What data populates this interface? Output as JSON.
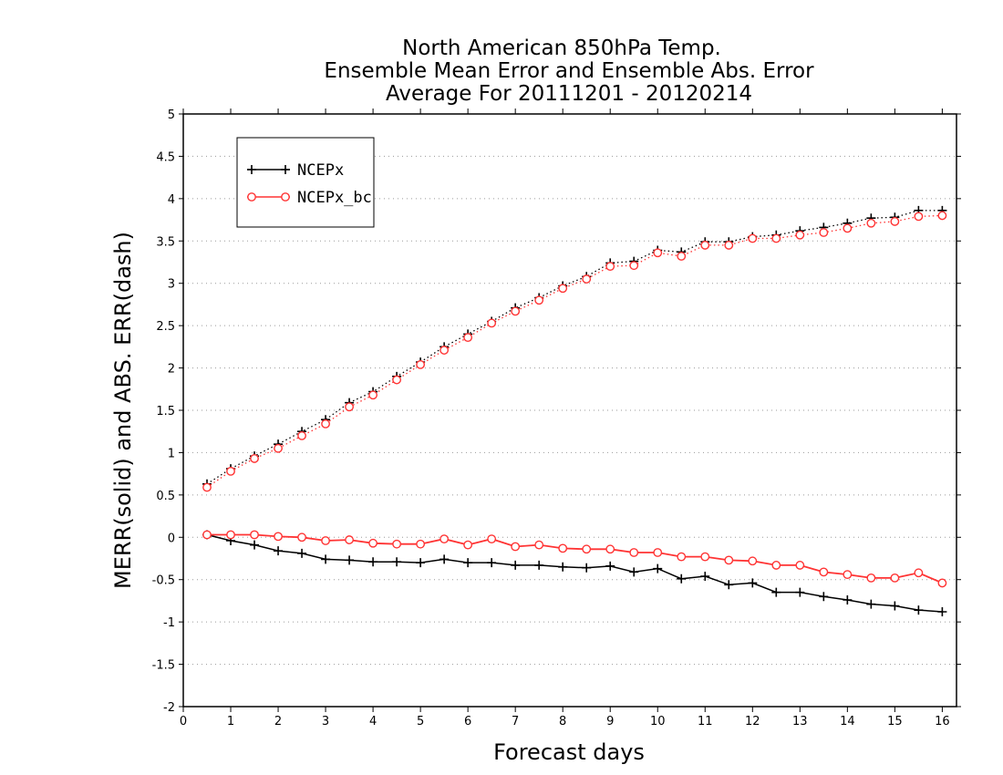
{
  "chart_data": {
    "type": "line",
    "title": [
      "North American 850hPa Temp.",
      "Ensemble Mean Error and Ensemble Abs. Error",
      "Average For 20111201 - 20120214"
    ],
    "xlabel": "Forecast days",
    "ylabel": "MERR(solid) and ABS. ERR(dash)",
    "xlim": [
      0,
      16.3
    ],
    "ylim": [
      -2,
      5
    ],
    "xticks": [
      "0",
      "1",
      "2",
      "3",
      "4",
      "5",
      "6",
      "7",
      "8",
      "9",
      "10",
      "11",
      "12",
      "13",
      "14",
      "15",
      "16"
    ],
    "yticks": [
      "-2",
      "-1.5",
      "-1",
      "-0.5",
      "0",
      "0.5",
      "1",
      "1.5",
      "2",
      "2.5",
      "3",
      "3.5",
      "4",
      "4.5",
      "5"
    ],
    "grid": true,
    "legend_position": "top-left",
    "x": [
      0.5,
      1,
      1.5,
      2,
      2.5,
      3,
      3.5,
      4,
      4.5,
      5,
      5.5,
      6,
      6.5,
      7,
      7.5,
      8,
      8.5,
      9,
      9.5,
      10,
      10.5,
      11,
      11.5,
      12,
      12.5,
      13,
      13.5,
      14,
      14.5,
      15,
      15.5,
      16
    ],
    "series": [
      {
        "name": "NCEPx",
        "color": "#000000",
        "marker": "plus",
        "merr": [
          0.03,
          -0.04,
          -0.09,
          -0.16,
          -0.19,
          -0.26,
          -0.27,
          -0.29,
          -0.29,
          -0.3,
          -0.26,
          -0.3,
          -0.3,
          -0.33,
          -0.33,
          -0.35,
          -0.36,
          -0.34,
          -0.41,
          -0.37,
          -0.49,
          -0.46,
          -0.56,
          -0.54,
          -0.65,
          -0.65,
          -0.7,
          -0.74,
          -0.79,
          -0.81,
          -0.86,
          -0.88
        ],
        "abs_err": [
          0.63,
          0.81,
          0.96,
          1.1,
          1.25,
          1.39,
          1.59,
          1.72,
          1.9,
          2.07,
          2.25,
          2.4,
          2.55,
          2.71,
          2.83,
          2.97,
          3.08,
          3.24,
          3.26,
          3.39,
          3.37,
          3.49,
          3.49,
          3.55,
          3.57,
          3.62,
          3.66,
          3.71,
          3.77,
          3.78,
          3.86,
          3.86
        ]
      },
      {
        "name": "NCEPx_bc",
        "color": "#ff3333",
        "marker": "circle",
        "merr": [
          0.03,
          0.03,
          0.03,
          0.01,
          0.0,
          -0.04,
          -0.03,
          -0.07,
          -0.08,
          -0.08,
          -0.02,
          -0.09,
          -0.02,
          -0.11,
          -0.09,
          -0.13,
          -0.14,
          -0.14,
          -0.18,
          -0.18,
          -0.23,
          -0.23,
          -0.27,
          -0.28,
          -0.33,
          -0.33,
          -0.41,
          -0.44,
          -0.48,
          -0.48,
          -0.42,
          -0.54
        ],
        "abs_err": [
          0.59,
          0.78,
          0.93,
          1.05,
          1.2,
          1.34,
          1.54,
          1.68,
          1.86,
          2.04,
          2.21,
          2.36,
          2.53,
          2.67,
          2.8,
          2.94,
          3.05,
          3.2,
          3.21,
          3.36,
          3.32,
          3.45,
          3.45,
          3.53,
          3.53,
          3.57,
          3.6,
          3.65,
          3.71,
          3.73,
          3.79,
          3.8
        ]
      }
    ]
  }
}
